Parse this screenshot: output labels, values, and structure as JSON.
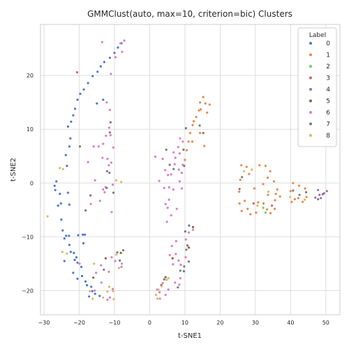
{
  "chart_data": {
    "type": "scatter",
    "title": "GMMClust(auto, max=10, criterion=bic) Clusters",
    "xlabel": "t-SNE1",
    "ylabel": "t-SNE2",
    "xlim": [
      -31,
      54
    ],
    "ylim": [
      -24.5,
      29.5
    ],
    "xticks": [
      -30,
      -20,
      -10,
      0,
      10,
      20,
      30,
      40,
      50
    ],
    "yticks": [
      -20,
      -10,
      0,
      10,
      20
    ],
    "grid": true,
    "legend": {
      "title": "Label",
      "position": "top-right"
    },
    "series": [
      {
        "name": "0",
        "color": "#4878d0",
        "points": [
          [
            -27,
            -0.5
          ],
          [
            -26.5,
            0.3
          ],
          [
            -26.8,
            -1.3
          ],
          [
            -25.5,
            -2
          ],
          [
            -25.2,
            -3.8
          ],
          [
            -26,
            -4.2
          ],
          [
            -25.1,
            -6.8
          ],
          [
            -24.7,
            -8.8
          ],
          [
            -24.2,
            -10.3
          ],
          [
            -23.7,
            -9.8
          ],
          [
            -22.8,
            -11.5
          ],
          [
            -22.4,
            -12.8
          ],
          [
            -21.5,
            -13
          ],
          [
            -21.3,
            -14.3
          ],
          [
            -20.8,
            -13.8
          ],
          [
            -20.5,
            -14.8
          ],
          [
            -21.7,
            -16.7
          ],
          [
            -20.5,
            -17.8
          ],
          [
            -19.2,
            -17.3
          ],
          [
            -18.2,
            -18.3
          ],
          [
            -17.8,
            -19
          ],
          [
            -16.6,
            -19.3
          ],
          [
            -16.3,
            -20.1
          ],
          [
            -15.5,
            -20.6
          ],
          [
            -14.2,
            -21
          ],
          [
            -17.2,
            -21.1
          ],
          [
            -20.3,
            -9.7
          ],
          [
            -19,
            -9.6
          ],
          [
            -18.4,
            -9.6
          ],
          [
            -18.8,
            -11.2
          ],
          [
            -19.4,
            -15.6
          ],
          [
            -23.5,
            3.2
          ],
          [
            -23.8,
            5.2
          ],
          [
            -22.8,
            6.8
          ],
          [
            -22.5,
            8.3
          ],
          [
            -23.2,
            10.5
          ],
          [
            -22.3,
            11.4
          ],
          [
            -21.7,
            12.6
          ],
          [
            -21.2,
            13.8
          ],
          [
            -20.5,
            15.5
          ],
          [
            -19.7,
            16.6
          ],
          [
            -18.7,
            17.4
          ],
          [
            -17.5,
            18.6
          ],
          [
            -16.2,
            19.9
          ],
          [
            -14.8,
            20.7
          ],
          [
            -13.9,
            21.7
          ],
          [
            -12.9,
            22.5
          ],
          [
            -11.3,
            23.3
          ],
          [
            -10,
            24.2
          ],
          [
            -9,
            25.2
          ],
          [
            -8,
            26
          ],
          [
            -23.2,
            -1.8
          ],
          [
            -22.8,
            -4
          ],
          [
            -24.2,
            -14.5
          ],
          [
            -15,
            14.8
          ],
          [
            -13.2,
            15.5
          ],
          [
            -22.9,
            -9.8
          ]
        ]
      },
      {
        "name": "1",
        "color": "#ee854a",
        "points": [
          [
            10,
            4.3
          ],
          [
            10.5,
            6.1
          ],
          [
            11,
            7.7
          ],
          [
            11.5,
            9.3
          ],
          [
            12.2,
            10.8
          ],
          [
            13.2,
            12.3
          ],
          [
            14.5,
            13.7
          ],
          [
            15.8,
            14.8
          ],
          [
            17,
            14.6
          ],
          [
            12.5,
            11.5
          ],
          [
            14,
            13.5
          ],
          [
            15.2,
            16
          ],
          [
            14.3,
            15
          ],
          [
            16.3,
            13.1
          ],
          [
            12.1,
            7.7
          ],
          [
            14.3,
            9.3
          ],
          [
            15.5,
            6.9
          ],
          [
            26,
            3.3
          ],
          [
            25.7,
            0.6
          ],
          [
            25.4,
            -1.6
          ],
          [
            25.5,
            -3.8
          ],
          [
            26.1,
            -5.2
          ],
          [
            27,
            -3.3
          ],
          [
            27.8,
            -4.8
          ],
          [
            28.6,
            -5.8
          ],
          [
            30.2,
            -5.5
          ],
          [
            30.8,
            -3.6
          ],
          [
            32.3,
            -3.8
          ],
          [
            33.3,
            -4.9
          ],
          [
            34.3,
            -5.6
          ],
          [
            35.5,
            -4.8
          ],
          [
            35.8,
            -2
          ],
          [
            35.3,
            0.3
          ],
          [
            34.2,
            2.2
          ],
          [
            32.9,
            3.2
          ],
          [
            31.2,
            3.3
          ],
          [
            27.5,
            3
          ],
          [
            28.2,
            1.7
          ],
          [
            29.7,
            -1
          ],
          [
            32.2,
            -0.2
          ],
          [
            33.5,
            1
          ],
          [
            35.6,
            -3.2
          ],
          [
            37,
            -2.5
          ],
          [
            40,
            -1.5
          ],
          [
            41.2,
            -3
          ],
          [
            42.2,
            -2.8
          ],
          [
            43.4,
            -3.5
          ],
          [
            44.5,
            -2.6
          ],
          [
            44.1,
            -1
          ],
          [
            42.4,
            -0.5
          ],
          [
            40.7,
            0
          ],
          [
            40.3,
            -3.5
          ],
          [
            36.2,
            -1.2
          ],
          [
            33.6,
            -2.2
          ]
        ]
      },
      {
        "name": "2",
        "color": "#6acc64",
        "points": [
          [
            32.2,
            -4.6
          ],
          [
            32.9,
            -5.5
          ]
        ]
      },
      {
        "name": "3",
        "color": "#d65f5f",
        "points": [
          [
            -20.6,
            20.6
          ],
          [
            29.5,
            -3.8
          ],
          [
            34.7,
            -4.2
          ]
        ]
      },
      {
        "name": "4",
        "color": "#956cb4",
        "points": [
          [
            47,
            -2.7
          ],
          [
            47.8,
            -1.3
          ],
          [
            48.6,
            -2.8
          ],
          [
            49.5,
            -1.9
          ],
          [
            50.3,
            -1.5
          ],
          [
            49.1,
            -2.1
          ],
          [
            48.2,
            -2.2
          ]
        ]
      },
      {
        "name": "5",
        "color": "#8c613c",
        "points": [
          [
            -16,
            -17.6
          ],
          [
            -12.5,
            -14
          ],
          [
            3.3,
            -19
          ],
          [
            4.5,
            -17.5
          ],
          [
            6.5,
            -14
          ],
          [
            11.1,
            -12
          ],
          [
            12.3,
            -8.2
          ],
          [
            -8.2,
            -13
          ]
        ]
      },
      {
        "name": "6",
        "color": "#dc7ec0",
        "points": [
          [
            -13.5,
            26.2
          ],
          [
            -11,
            20.3
          ],
          [
            -9.7,
            23.4
          ],
          [
            -7.8,
            24.4
          ],
          [
            -7.2,
            26.5
          ],
          [
            -8.3,
            26
          ],
          [
            -12.2,
            15
          ],
          [
            -11.3,
            13.6
          ],
          [
            -12.4,
            8.8
          ],
          [
            -14.5,
            6.8
          ],
          [
            -13.2,
            7.3
          ],
          [
            -11.5,
            10.3
          ],
          [
            -12,
            4.5
          ],
          [
            -13.4,
            4.7
          ],
          [
            -11.6,
            3.3
          ],
          [
            -12.5,
            -0.8
          ],
          [
            -13.2,
            -1.2
          ],
          [
            -14.1,
            -3.3
          ],
          [
            -12.8,
            -1.7
          ],
          [
            -10.5,
            -0.3
          ],
          [
            -10.9,
            3.8
          ],
          [
            -11.1,
            8.9
          ],
          [
            -10.3,
            6.6
          ],
          [
            -10.8,
            -5.4
          ],
          [
            -16.7,
            -3.9
          ],
          [
            -17.5,
            3.9
          ],
          [
            -15.9,
            6.8
          ],
          [
            -15.5,
            0.5
          ],
          [
            -15.2,
            -16.7
          ],
          [
            -13.8,
            -15.3
          ],
          [
            -10.8,
            -13.8
          ],
          [
            -9.8,
            -14.5
          ],
          [
            -7.9,
            -15
          ],
          [
            -8,
            -15.6
          ],
          [
            -11.6,
            -16.5
          ],
          [
            -10.5,
            -19.7
          ],
          [
            -11.3,
            -21.3
          ],
          [
            -12,
            -21.7
          ],
          [
            -13.7,
            -18.5
          ],
          [
            -19.9,
            -15
          ],
          [
            -15.6,
            -20
          ],
          [
            1.6,
            4.9
          ],
          [
            3.7,
            4.5
          ],
          [
            4.4,
            2.4
          ],
          [
            5.2,
            1.5
          ],
          [
            5.5,
            -0.8
          ],
          [
            5.5,
            -3.1
          ],
          [
            5.1,
            -4.6
          ],
          [
            4.5,
            -3.9
          ],
          [
            4.1,
            -0.9
          ],
          [
            6.7,
            -1.2
          ],
          [
            6.1,
            1.6
          ],
          [
            7.1,
            3.5
          ],
          [
            6.8,
            5.7
          ],
          [
            8.1,
            6.7
          ],
          [
            8.6,
            8.3
          ],
          [
            9.4,
            7.7
          ],
          [
            8.5,
            5.5
          ],
          [
            9.4,
            3.4
          ],
          [
            9.1,
            1.9
          ],
          [
            8.5,
            0.3
          ],
          [
            4.9,
            -7.2
          ],
          [
            6.3,
            -11.7
          ],
          [
            7.4,
            -13.2
          ],
          [
            8.2,
            -14.4
          ],
          [
            8.8,
            -15.2
          ],
          [
            10.2,
            -13.8
          ],
          [
            10.3,
            -10.5
          ],
          [
            11.1,
            -9.2
          ],
          [
            12.3,
            -8.7
          ],
          [
            8.7,
            -17.7
          ],
          [
            8.4,
            -18.9
          ],
          [
            7.2,
            -18.5
          ],
          [
            5.3,
            -19.8
          ],
          [
            4.5,
            -20.8
          ],
          [
            2.8,
            -20.3
          ],
          [
            2.1,
            -19.8
          ],
          [
            2.9,
            -21.5
          ],
          [
            3.7,
            -18.6
          ],
          [
            6.6,
            -15.1
          ],
          [
            5.7,
            -13.4
          ],
          [
            7.5,
            -10.8
          ],
          [
            7.7,
            -4.8
          ],
          [
            6.1,
            -6
          ],
          [
            2.7,
            0.4
          ],
          [
            7.3,
            4.7
          ],
          [
            8.3,
            2.5
          ],
          [
            9.1,
            -1
          ]
        ]
      },
      {
        "name": "7",
        "color": "#797979",
        "points": [
          [
            -18.2,
            -5.1
          ],
          [
            -12.2,
            -0.9
          ],
          [
            -10.3,
            -1.8
          ],
          [
            -11.4,
            1.9
          ],
          [
            -12.1,
            2.2
          ],
          [
            -11.3,
            9.4
          ],
          [
            -11.1,
            11.3
          ],
          [
            -7.5,
            -12.5
          ],
          [
            -8.5,
            -14.4
          ],
          [
            -13,
            -16.1
          ],
          [
            -9.2,
            -12.9
          ],
          [
            -19.8,
            6.8
          ],
          [
            -16.8,
            -2.3
          ],
          [
            4.7,
            6.2
          ],
          [
            5.7,
            3.4
          ],
          [
            6.8,
            2.6
          ],
          [
            9.8,
            -15.5
          ],
          [
            11.1,
            -14.6
          ],
          [
            10.4,
            -12.4
          ],
          [
            10.7,
            -11.6
          ],
          [
            10.1,
            -9
          ],
          [
            11.2,
            -7.9
          ],
          [
            8.7,
            -16.3
          ],
          [
            9.7,
            -16.4
          ],
          [
            8,
            -19.4
          ],
          [
            4.1,
            -17.9
          ],
          [
            9.6,
            6.2
          ],
          [
            9.8,
            3.2
          ],
          [
            10.3,
            10.2
          ],
          [
            14.2,
            10.7
          ],
          [
            15.2,
            9.3
          ],
          [
            25.5,
            -1.1
          ],
          [
            26.2,
            1.1
          ],
          [
            44.4,
            -1.7
          ],
          [
            40.7,
            -1.4
          ],
          [
            42.5,
            -2.2
          ],
          [
            47.8,
            -3
          ]
        ]
      },
      {
        "name": "8",
        "color": "#d5bb67",
        "points": [
          [
            -29,
            -6.2
          ],
          [
            -25.5,
            2.8
          ],
          [
            -24.6,
            2.6
          ],
          [
            -24.8,
            -12.8
          ],
          [
            -23.5,
            -13.1
          ],
          [
            -17,
            -20.1
          ],
          [
            -16.2,
            -21.5
          ],
          [
            -13.2,
            -21.3
          ],
          [
            -11.5,
            -19.3
          ],
          [
            -10.4,
            -20.1
          ],
          [
            -10.2,
            -21.6
          ],
          [
            -12,
            -20.2
          ],
          [
            1.8,
            -20.8
          ],
          [
            2.2,
            -21.5
          ],
          [
            3.4,
            -19.2
          ],
          [
            4.8,
            -18
          ],
          [
            5.3,
            -17.7
          ],
          [
            -9.5,
            0.5
          ],
          [
            -8.1,
            0.2
          ],
          [
            -9.5,
            -13.3
          ],
          [
            -15.8,
            -15
          ],
          [
            26.8,
            2.2
          ],
          [
            29,
            2.5
          ],
          [
            30.6,
            -4.2
          ],
          [
            33.7,
            -1.6
          ],
          [
            39.9,
            -2.6
          ],
          [
            44,
            -3.1
          ],
          [
            -8.7,
            -15.8
          ],
          [
            2.5,
            -19.8
          ]
        ]
      }
    ]
  }
}
